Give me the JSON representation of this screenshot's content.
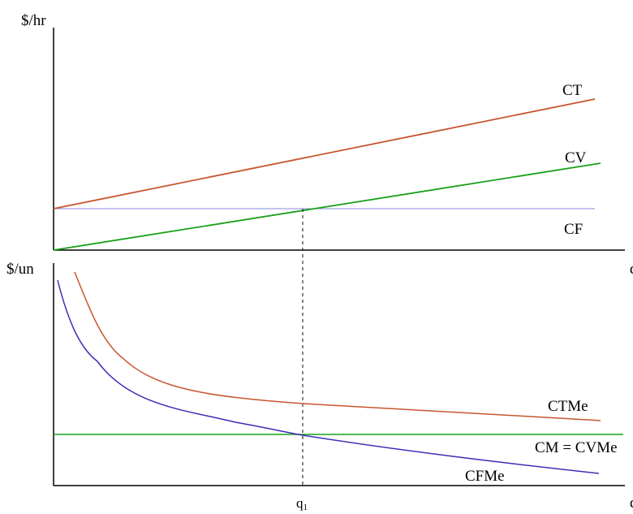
{
  "chart_data": [
    {
      "type": "line",
      "ylabel": "$/hr",
      "xlabel": "q",
      "series": [
        {
          "name": "CT",
          "color": "#c8552e",
          "points": [
            [
              0,
              1.0
            ],
            [
              1.0,
              3.75
            ]
          ]
        },
        {
          "name": "CV",
          "color": "#1aa01a",
          "points": [
            [
              0,
              0.0
            ],
            [
              1.0,
              2.2
            ]
          ]
        },
        {
          "name": "CF",
          "color": "#8a8ad8",
          "points": [
            [
              0,
              1.0
            ],
            [
              1.0,
              1.0
            ]
          ]
        }
      ]
    },
    {
      "type": "line",
      "ylabel": "$/un",
      "xlabel": "q",
      "x_marker": {
        "label": "q",
        "subscript": "1",
        "x": 0.455
      },
      "series": [
        {
          "name": "CTMe",
          "color": "#c8552e",
          "shape": "hyperbolic-above"
        },
        {
          "name": "CM = CVMe",
          "color": "#1aa01a",
          "shape": "constant"
        },
        {
          "name": "CFMe",
          "color": "#3a2fb5",
          "shape": "hyperbolic"
        }
      ]
    }
  ]
}
